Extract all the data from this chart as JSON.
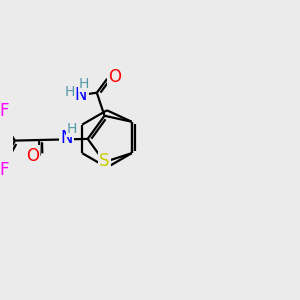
{
  "bg_color": "#EBEBEB",
  "atom_colors": {
    "S": "#CCCC00",
    "N": "#0000FF",
    "O": "#FF0000",
    "F": "#FF00FF",
    "H": "#5599AA",
    "C": "#000000"
  },
  "bond_lw": 1.6,
  "font_size": 11
}
